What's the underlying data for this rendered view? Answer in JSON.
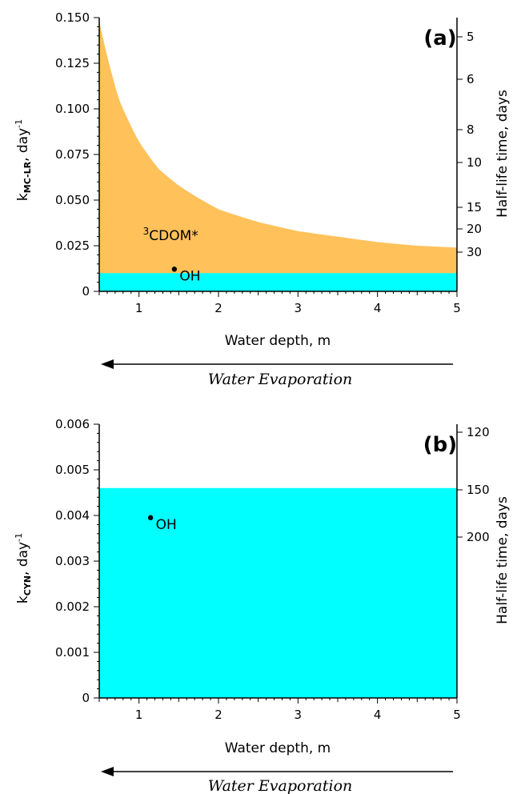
{
  "colors": {
    "cdom": "#FFC15A",
    "oh": "#00FFFF",
    "axis": "#000000"
  },
  "chart_data": [
    {
      "type": "area",
      "panel_label": "(a)",
      "xlabel": "Water depth, m",
      "ylabel_main": "k",
      "ylabel_sub": "MC-LR",
      "ylabel_suffix": ", day",
      "ylabel_sup": "-1",
      "y2label": "Half-life time, days",
      "xlim": [
        0.5,
        5
      ],
      "ylim": [
        0,
        0.15
      ],
      "x_ticks": [
        "1",
        "2",
        "3",
        "4",
        "5"
      ],
      "y_ticks": [
        "0",
        "0.025",
        "0.050",
        "0.075",
        "0.100",
        "0.125",
        "0.150"
      ],
      "y2_ticks": [
        "5",
        "6",
        "8",
        "10",
        "15",
        "20",
        "30"
      ],
      "series": [
        {
          "name": "•OH",
          "label_dot": "•",
          "label_text": "OH",
          "label_at": [
            1.38,
            0.006
          ],
          "x": [
            0.5,
            1,
            2,
            3,
            4,
            5
          ],
          "values": [
            0.01,
            0.01,
            0.01,
            0.01,
            0.01,
            0.01
          ]
        },
        {
          "name": "3CDOM*",
          "label_sup": "3",
          "label_text": "CDOM*",
          "label_at": [
            1.05,
            0.028
          ],
          "x": [
            0.5,
            0.75,
            1,
            1.25,
            1.5,
            2,
            2.5,
            3,
            3.5,
            4,
            4.5,
            5
          ],
          "values": [
            0.148,
            0.105,
            0.082,
            0.067,
            0.058,
            0.045,
            0.038,
            0.033,
            0.03,
            0.027,
            0.025,
            0.024
          ]
        }
      ],
      "annotation": "Water Evaporation"
    },
    {
      "type": "area",
      "panel_label": "(b)",
      "xlabel": "Water depth, m",
      "ylabel_main": "k",
      "ylabel_sub": "CYN",
      "ylabel_suffix": ", day",
      "ylabel_sup": "-1",
      "y2label": "Half-life time, days",
      "xlim": [
        0.5,
        5
      ],
      "ylim": [
        0,
        0.006
      ],
      "x_ticks": [
        "1",
        "2",
        "3",
        "4",
        "5"
      ],
      "y_ticks": [
        "0",
        "0.001",
        "0.002",
        "0.003",
        "0.004",
        "0.005",
        "0.006"
      ],
      "y2_ticks": [
        "120",
        "150",
        "200"
      ],
      "series": [
        {
          "name": "•OH",
          "label_dot": "•",
          "label_text": "OH",
          "label_at": [
            1.08,
            0.0037
          ],
          "x": [
            0.5,
            5
          ],
          "values": [
            0.0046,
            0.0046
          ]
        }
      ],
      "annotation": "Water Evaporation"
    }
  ]
}
